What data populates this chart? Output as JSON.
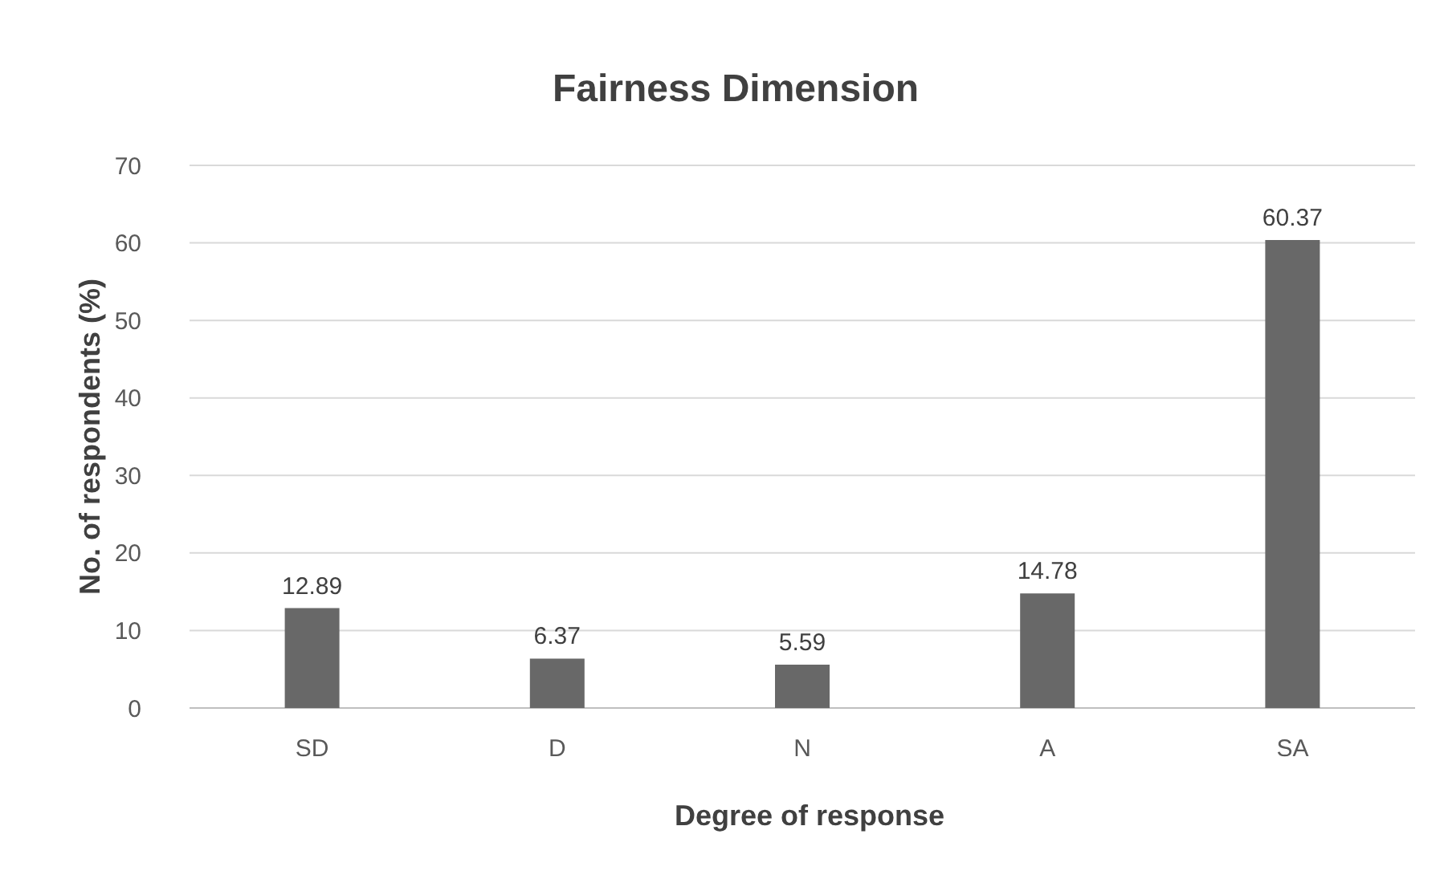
{
  "chart_data": {
    "type": "bar",
    "title": "Fairness Dimension",
    "xlabel": "Degree of response",
    "ylabel": "No. of respondents (%)",
    "categories": [
      "SD",
      "D",
      "N",
      "A",
      "SA"
    ],
    "values": [
      12.89,
      6.37,
      5.59,
      14.78,
      60.37
    ],
    "color": "#686868",
    "ylim": [
      0,
      70
    ],
    "yticks": [
      0,
      10,
      20,
      30,
      40,
      50,
      60,
      70
    ],
    "grid": "y",
    "data_labels": true
  }
}
